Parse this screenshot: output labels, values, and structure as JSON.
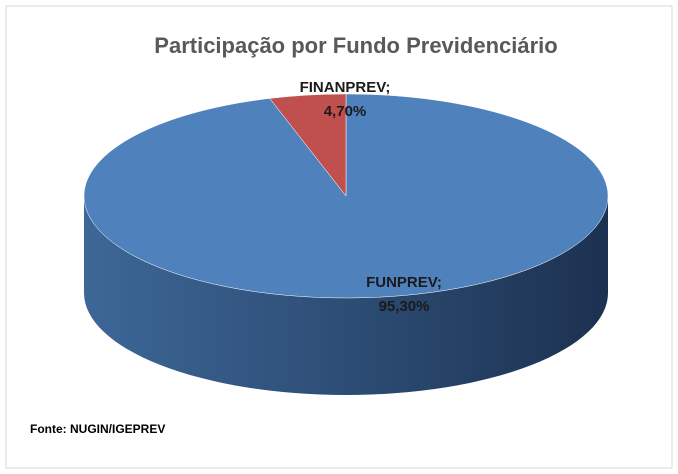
{
  "chart_data": {
    "type": "pie",
    "title": "Participação por Fundo Previdenciário",
    "categories": [
      "FUNPREV;",
      "FINANPREV;"
    ],
    "values": [
      95.3,
      4.7
    ],
    "value_labels": [
      "95,30%",
      "4,70%"
    ],
    "colors": [
      "#4f81bd",
      "#c0504d"
    ],
    "source": "Fonte: NUGIN/IGEPREV"
  }
}
